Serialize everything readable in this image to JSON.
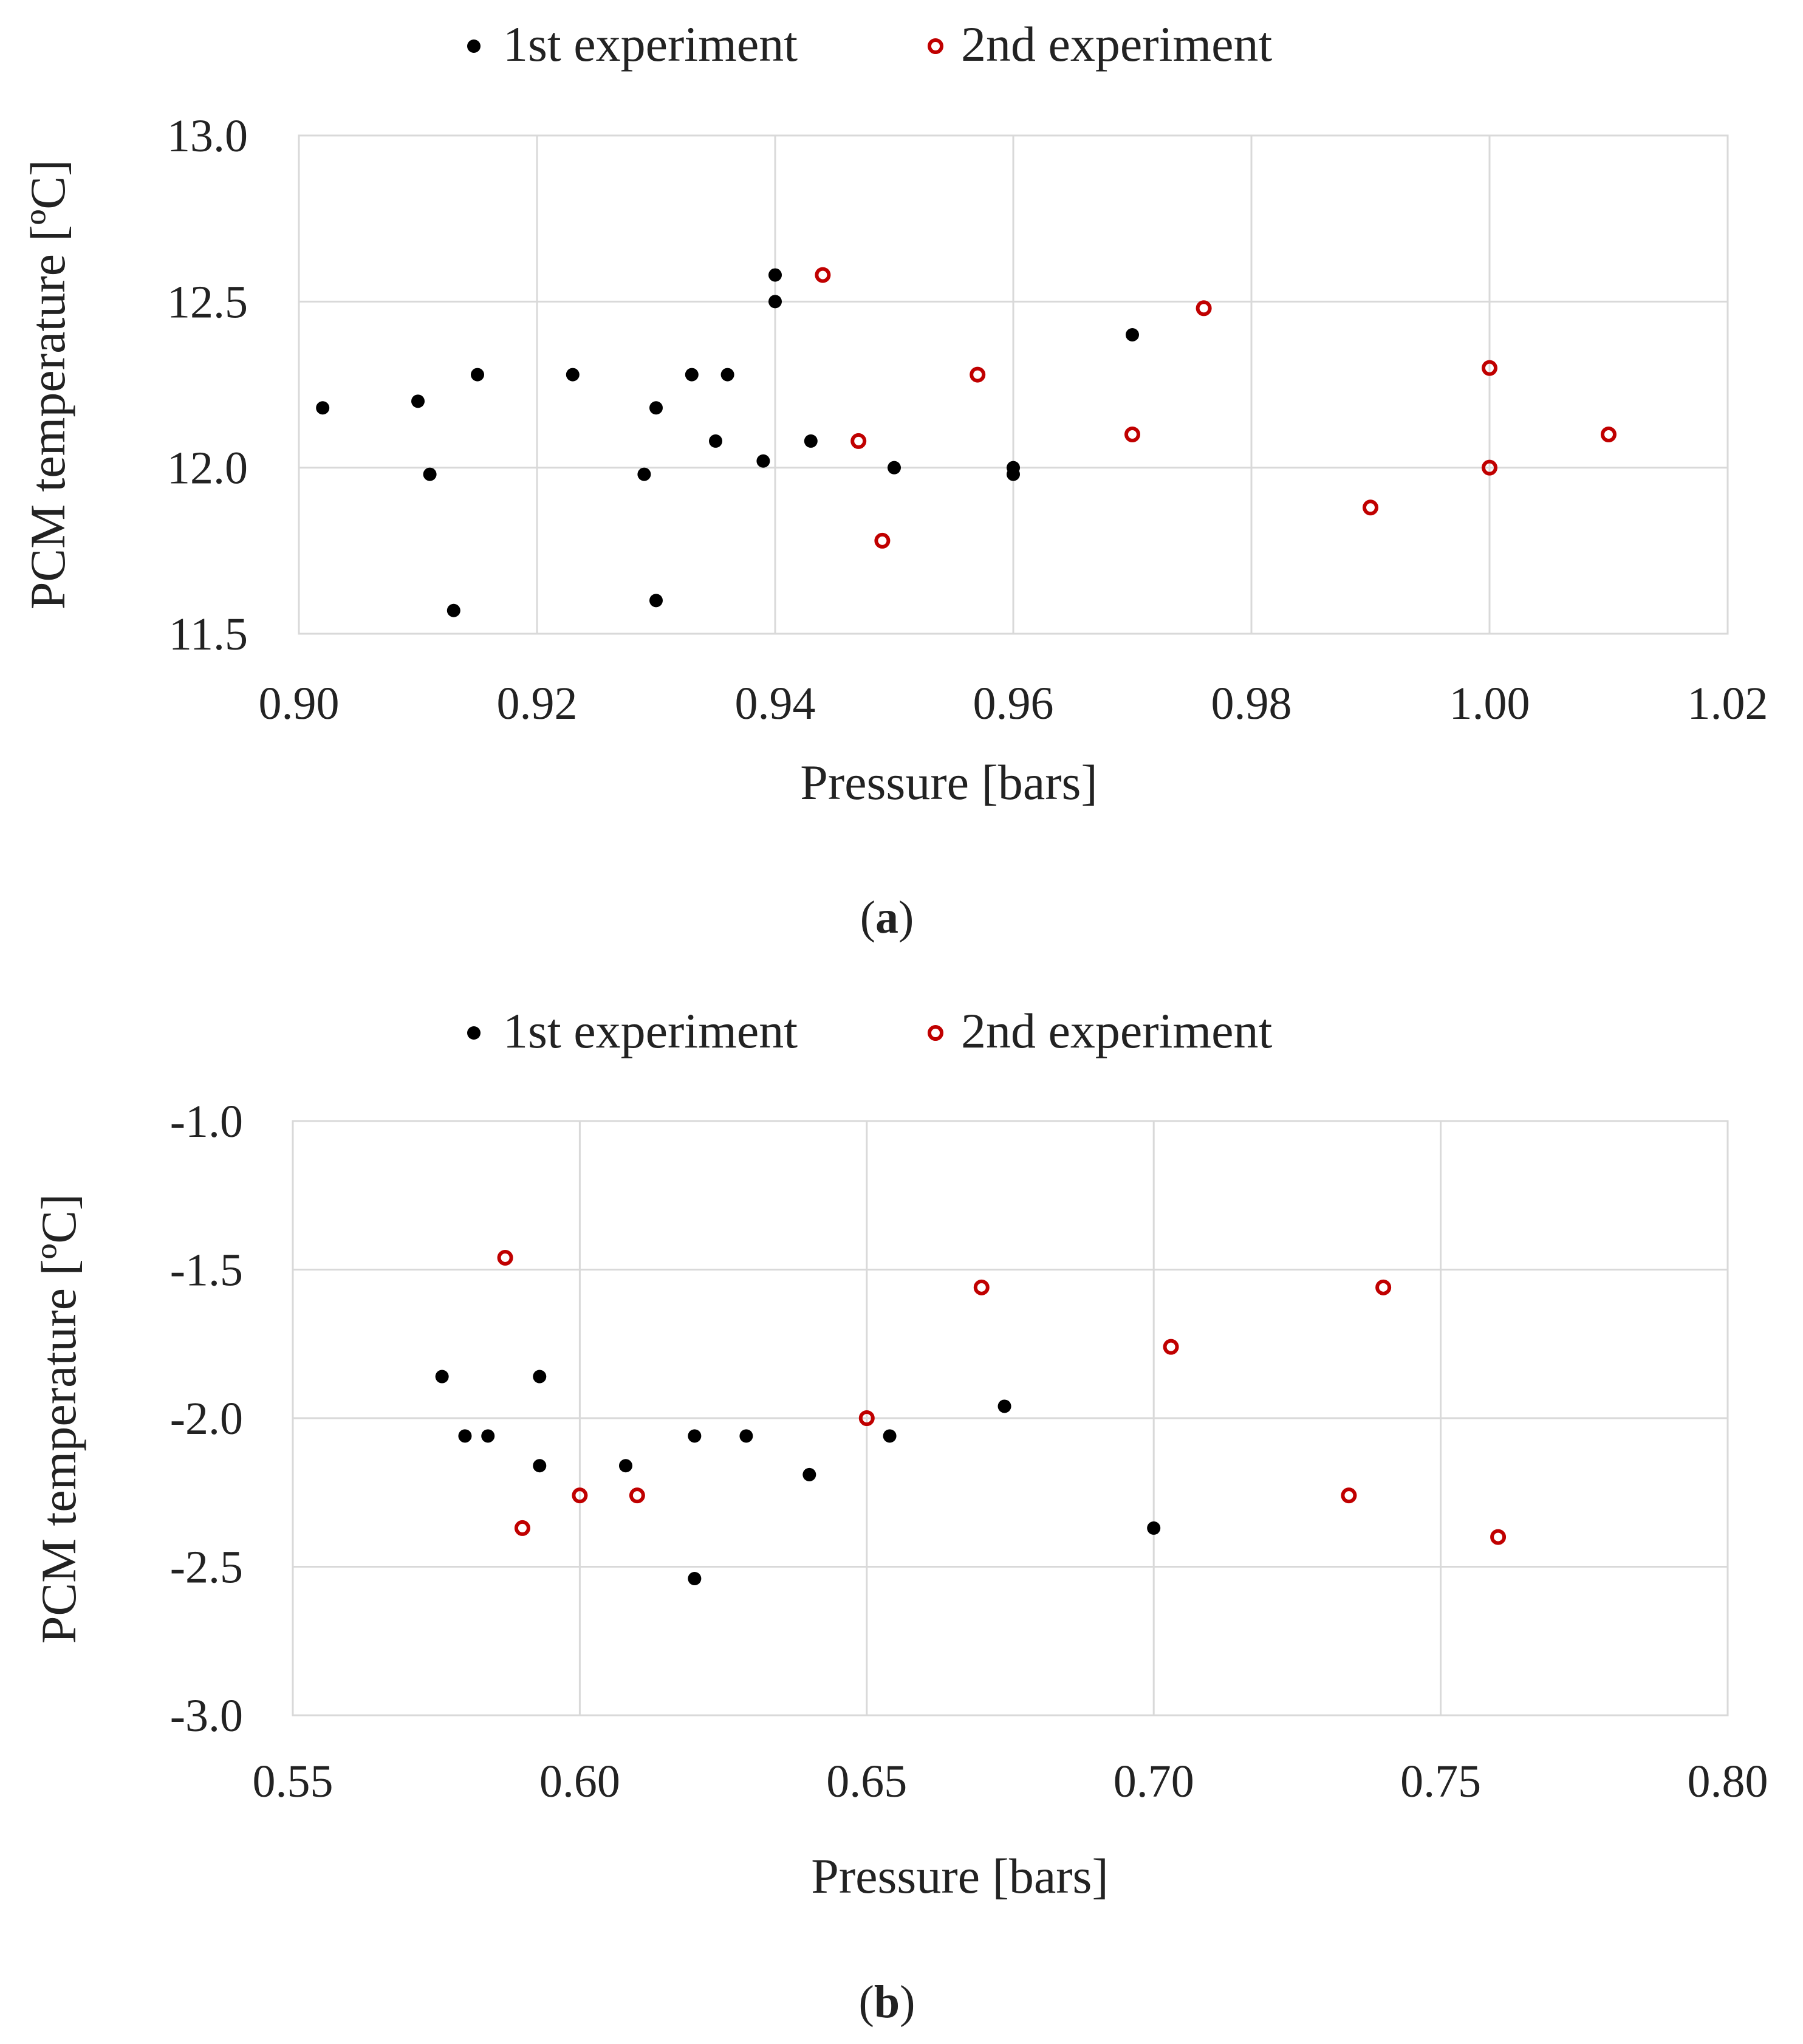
{
  "colors": {
    "series1": "#000000",
    "series2": "#c00000",
    "grid": "#d9d9d9",
    "text": "#222222"
  },
  "chart_data": [
    {
      "type": "scatter",
      "caption": "(a)",
      "caption_letter": "a",
      "xlabel": "Pressure [bars]",
      "ylabel": "PCM temperature [ºC]",
      "xlim": [
        0.9,
        1.02
      ],
      "ylim": [
        11.5,
        13.0
      ],
      "xticks": [
        0.9,
        0.92,
        0.94,
        0.96,
        0.98,
        1.0,
        1.02
      ],
      "yticks": [
        11.5,
        12.0,
        12.5,
        13.0
      ],
      "xtick_labels": [
        "0.90",
        "0.92",
        "0.94",
        "0.96",
        "0.98",
        "1.00",
        "1.02"
      ],
      "ytick_labels": [
        "11.5",
        "12.0",
        "12.5",
        "13.0"
      ],
      "legend_position": "top",
      "grid": true,
      "series": [
        {
          "name": "1st experiment",
          "marker": "filled-circle",
          "points": [
            [
              0.902,
              12.18
            ],
            [
              0.91,
              12.2
            ],
            [
              0.911,
              11.98
            ],
            [
              0.913,
              11.57
            ],
            [
              0.915,
              12.28
            ],
            [
              0.923,
              12.28
            ],
            [
              0.929,
              11.98
            ],
            [
              0.93,
              12.18
            ],
            [
              0.93,
              11.6
            ],
            [
              0.933,
              12.28
            ],
            [
              0.935,
              12.08
            ],
            [
              0.936,
              12.28
            ],
            [
              0.939,
              12.02
            ],
            [
              0.94,
              12.58
            ],
            [
              0.94,
              12.5
            ],
            [
              0.943,
              12.08
            ],
            [
              0.95,
              12.0
            ],
            [
              0.96,
              12.0
            ],
            [
              0.96,
              11.98
            ],
            [
              0.97,
              12.4
            ]
          ]
        },
        {
          "name": "2nd experiment",
          "marker": "open-circle",
          "points": [
            [
              0.944,
              12.58
            ],
            [
              0.947,
              12.08
            ],
            [
              0.949,
              11.78
            ],
            [
              0.957,
              12.28
            ],
            [
              0.97,
              12.1
            ],
            [
              0.976,
              12.48
            ],
            [
              0.99,
              11.88
            ],
            [
              1.0,
              12.3
            ],
            [
              1.0,
              12.0
            ],
            [
              1.01,
              12.1
            ]
          ]
        }
      ]
    },
    {
      "type": "scatter",
      "caption": "(b)",
      "caption_letter": "b",
      "xlabel": "Pressure [bars]",
      "ylabel": "PCM temperature [ºC]",
      "xlim": [
        0.55,
        0.8
      ],
      "ylim": [
        -3.0,
        -1.0
      ],
      "xticks": [
        0.55,
        0.6,
        0.65,
        0.7,
        0.75,
        0.8
      ],
      "yticks": [
        -3.0,
        -2.5,
        -2.0,
        -1.5,
        -1.0
      ],
      "xtick_labels": [
        "0.55",
        "0.60",
        "0.65",
        "0.70",
        "0.75",
        "0.80"
      ],
      "ytick_labels": [
        "-3.0",
        "-2.5",
        "-2.0",
        "-1.5",
        "-1.0"
      ],
      "legend_position": "top",
      "grid": true,
      "series": [
        {
          "name": "1st experiment",
          "marker": "filled-circle",
          "points": [
            [
              0.576,
              -1.86
            ],
            [
              0.58,
              -2.06
            ],
            [
              0.584,
              -2.06
            ],
            [
              0.593,
              -1.86
            ],
            [
              0.593,
              -2.16
            ],
            [
              0.608,
              -2.16
            ],
            [
              0.62,
              -2.06
            ],
            [
              0.62,
              -2.54
            ],
            [
              0.629,
              -2.06
            ],
            [
              0.64,
              -2.19
            ],
            [
              0.654,
              -2.06
            ],
            [
              0.674,
              -1.96
            ],
            [
              0.7,
              -2.37
            ]
          ]
        },
        {
          "name": "2nd experiment",
          "marker": "open-circle",
          "points": [
            [
              0.587,
              -1.46
            ],
            [
              0.59,
              -2.37
            ],
            [
              0.6,
              -2.26
            ],
            [
              0.61,
              -2.26
            ],
            [
              0.65,
              -2.0
            ],
            [
              0.67,
              -1.56
            ],
            [
              0.703,
              -1.76
            ],
            [
              0.734,
              -2.26
            ],
            [
              0.74,
              -1.56
            ],
            [
              0.76,
              -2.4
            ]
          ]
        }
      ]
    }
  ]
}
